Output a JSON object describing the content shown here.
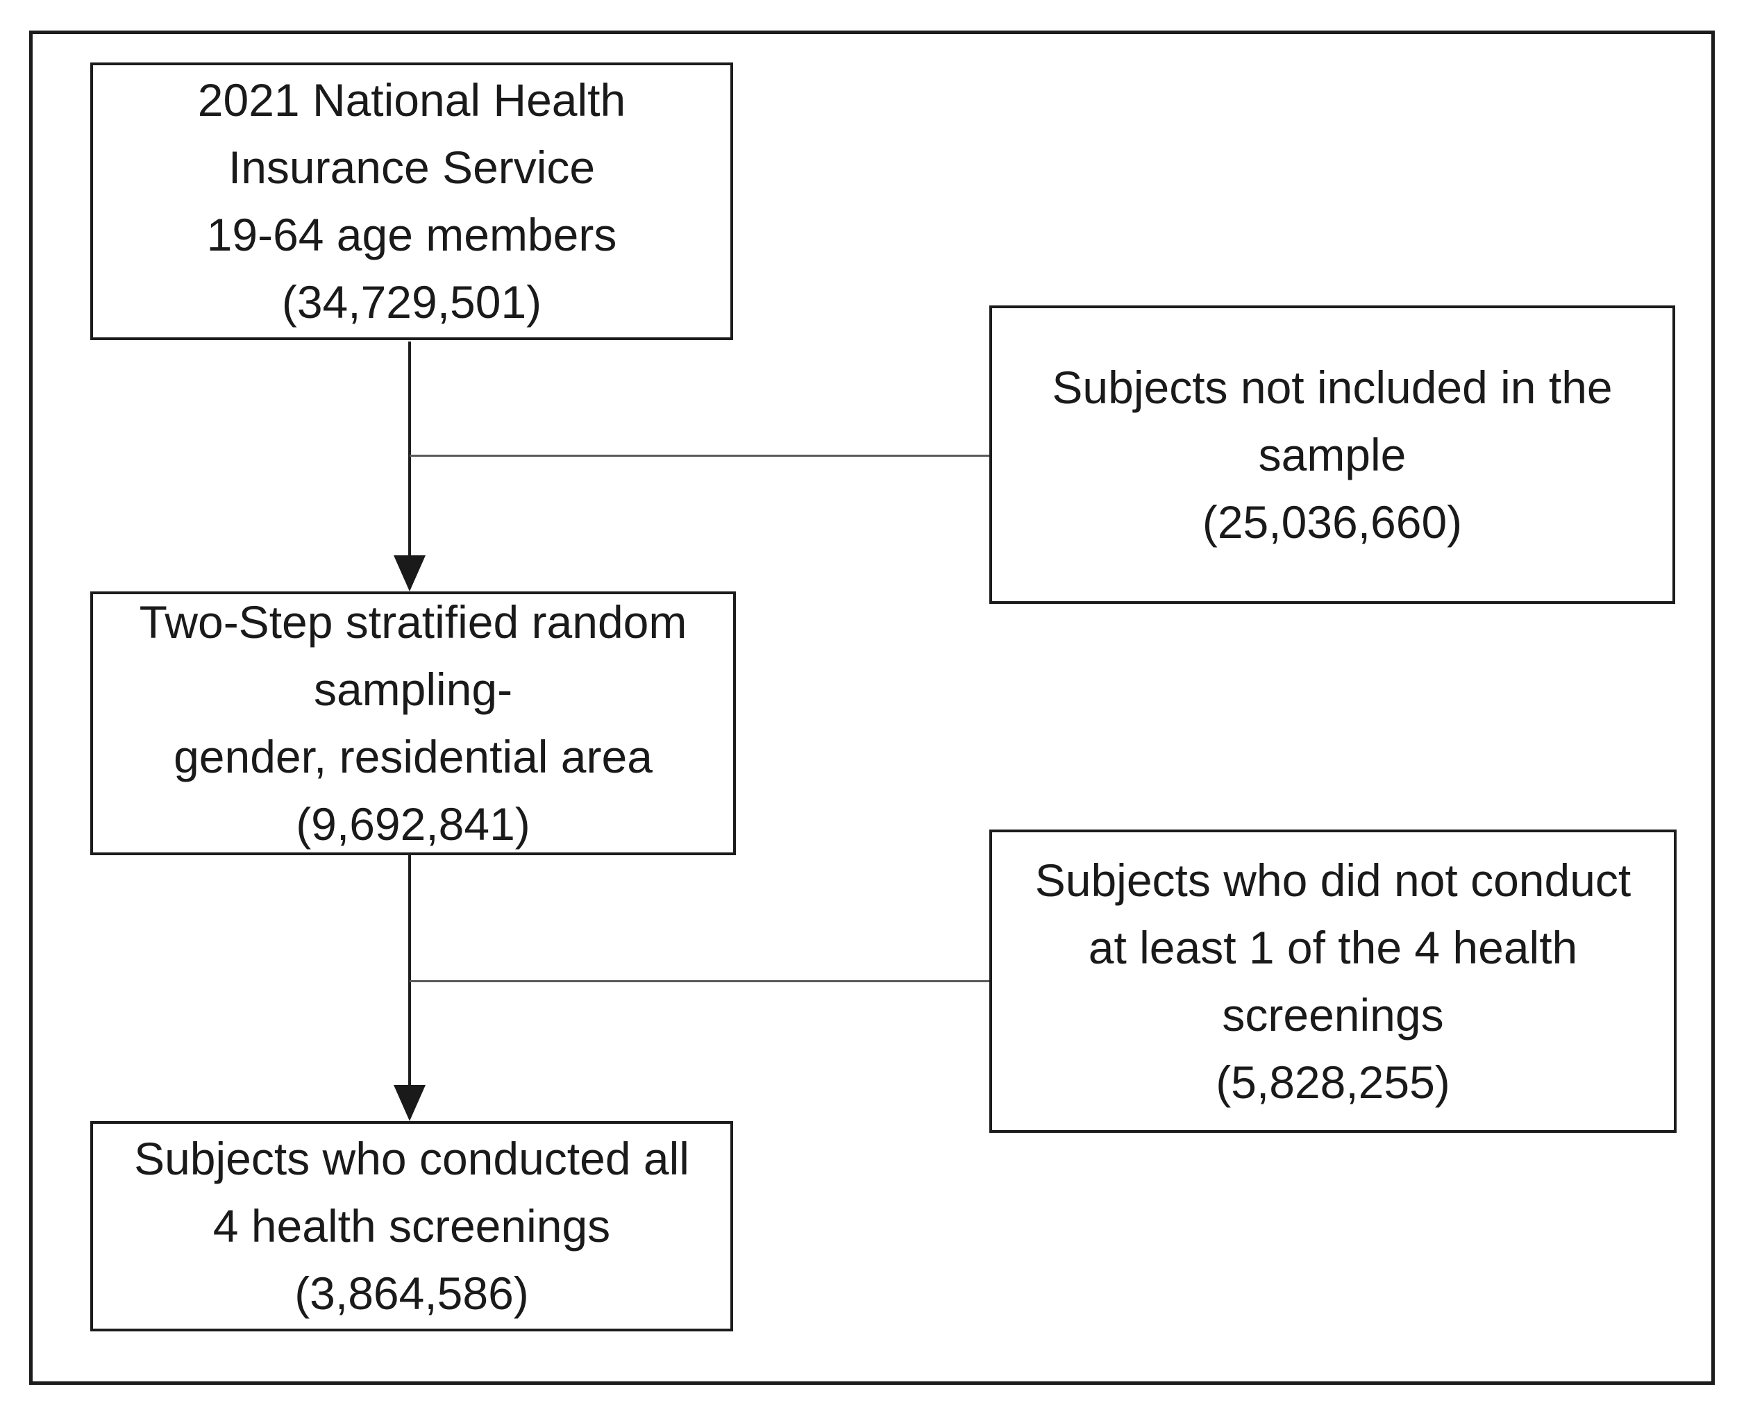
{
  "figure": {
    "type": "flow-diagram",
    "ink_color": "#1a1a1a",
    "connector_color": "#5a5a5a",
    "background_color": "#ffffff",
    "diagram": {
      "population": {
        "lines": [
          "2021 National Health",
          "Insurance Service",
          "19-64 age members",
          "(34,729,501)"
        ],
        "count": "34,729,501"
      },
      "excluded_sample": {
        "lines": [
          "Subjects not included in the",
          "sample",
          "(25,036,660)"
        ],
        "count": "25,036,660"
      },
      "sampling": {
        "lines": [
          "Two-Step stratified random",
          "sampling-",
          "gender, residential area",
          "(9,692,841)"
        ],
        "count": "9,692,841"
      },
      "excluded_screenings": {
        "lines": [
          "Subjects who did not conduct",
          "at least 1 of the 4 health",
          "screenings",
          "(5,828,255)"
        ],
        "count": "5,828,255"
      },
      "final_sample": {
        "lines": [
          "Subjects who conducted all",
          "4 health screenings",
          "(3,864,586)"
        ],
        "count": "3,864,586"
      }
    }
  }
}
